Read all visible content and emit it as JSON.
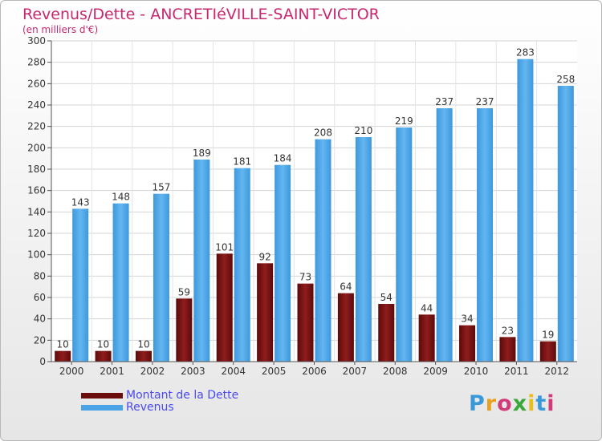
{
  "chart_data": {
    "type": "bar",
    "title": "Revenus/Dette - ANCRETIéVILLE-SAINT-VICTOR",
    "subtitle": "(en milliers d'€)",
    "categories": [
      "2000",
      "2001",
      "2002",
      "2003",
      "2004",
      "2005",
      "2006",
      "2007",
      "2008",
      "2009",
      "2010",
      "2011",
      "2012"
    ],
    "series": [
      {
        "name": "Montant de la Dette",
        "values": [
          10,
          10,
          10,
          59,
          101,
          92,
          73,
          64,
          54,
          44,
          34,
          23,
          19
        ],
        "color": "#7a1010"
      },
      {
        "name": "Revenus",
        "values": [
          143,
          148,
          157,
          189,
          181,
          184,
          208,
          210,
          219,
          237,
          237,
          283,
          258
        ],
        "color": "#4aa3e6"
      }
    ],
    "ylim": [
      0,
      300
    ],
    "yticks": [
      0,
      20,
      40,
      60,
      80,
      100,
      120,
      140,
      160,
      180,
      200,
      220,
      240,
      260,
      280,
      300
    ],
    "grid": true,
    "legend_position": "bottom-left"
  },
  "logo": {
    "text": "Proxiti"
  }
}
